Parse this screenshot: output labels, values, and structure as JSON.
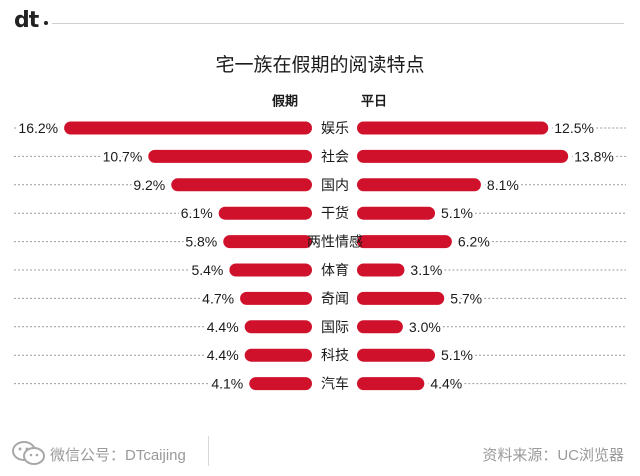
{
  "logo_text": "dt",
  "chart_data": {
    "type": "bar",
    "title": "宅一族在假期的阅读特点",
    "series": [
      {
        "name": "假期",
        "values": [
          16.2,
          10.7,
          9.2,
          6.1,
          5.8,
          5.4,
          4.7,
          4.4,
          4.4,
          4.1
        ],
        "labels": [
          "16.2%",
          "10.7%",
          "9.2%",
          "6.1%",
          "5.8%",
          "5.4%",
          "4.7%",
          "4.4%",
          "4.4%",
          "4.1%"
        ]
      },
      {
        "name": "平日",
        "values": [
          12.5,
          13.8,
          8.1,
          5.1,
          6.2,
          3.1,
          5.7,
          3.0,
          5.1,
          4.4
        ],
        "labels": [
          "12.5%",
          "13.8%",
          "8.1%",
          "5.1%",
          "6.2%",
          "3.1%",
          "5.7%",
          "3.0%",
          "5.1%",
          "4.4%"
        ]
      }
    ],
    "categories": [
      "娱乐",
      "社会",
      "国内",
      "干货",
      "两性情感",
      "体育",
      "奇闻",
      "国际",
      "科技",
      "汽车"
    ],
    "bar_color": "#d0112b"
  },
  "footer": {
    "left_text": "微信公号：DTcaijing",
    "right_text": "资料来源：UC浏览器",
    "wechat_icon": "wechat-icon"
  }
}
